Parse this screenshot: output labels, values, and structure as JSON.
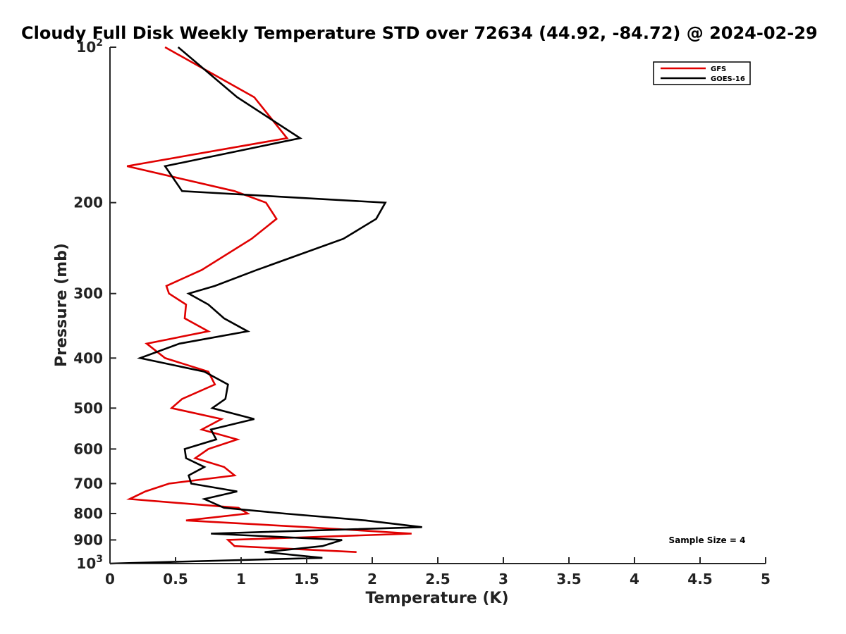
{
  "chart_data": {
    "type": "line",
    "title": "Cloudy Full Disk Weekly Temperature STD over 72634 (44.92, -84.72) @ 2024-02-29",
    "xlabel": "Temperature (K)",
    "ylabel": "Pressure (mb)",
    "xlim": [
      0,
      5
    ],
    "ylim": [
      100,
      1000
    ],
    "y_scale": "log",
    "y_reversed": true,
    "x_ticks": [
      0,
      0.5,
      1,
      1.5,
      2,
      2.5,
      3,
      3.5,
      4,
      4.5,
      5
    ],
    "x_tick_labels": [
      "0",
      "0.5",
      "1",
      "1.5",
      "2",
      "2.5",
      "3",
      "3.5",
      "4",
      "4.5",
      "5"
    ],
    "y_ticks": [
      {
        "value": 100,
        "label": "10",
        "sup": "2"
      },
      {
        "value": 200,
        "label": "200"
      },
      {
        "value": 300,
        "label": "300"
      },
      {
        "value": 400,
        "label": "400"
      },
      {
        "value": 500,
        "label": "500"
      },
      {
        "value": 600,
        "label": "600"
      },
      {
        "value": 700,
        "label": "700"
      },
      {
        "value": 800,
        "label": "800"
      },
      {
        "value": 900,
        "label": "900"
      },
      {
        "value": 1000,
        "label": "10",
        "sup": "3"
      }
    ],
    "legend_position": "top-right",
    "grid": false,
    "series": [
      {
        "name": "GFS",
        "color": "#e00000",
        "points": [
          [
            0.42,
            100
          ],
          [
            1.1,
            125
          ],
          [
            1.35,
            150
          ],
          [
            0.13,
            170
          ],
          [
            0.95,
            190
          ],
          [
            1.19,
            200
          ],
          [
            1.27,
            215
          ],
          [
            1.08,
            235
          ],
          [
            0.7,
            270
          ],
          [
            0.43,
            290
          ],
          [
            0.45,
            300
          ],
          [
            0.58,
            315
          ],
          [
            0.57,
            335
          ],
          [
            0.75,
            355
          ],
          [
            0.28,
            375
          ],
          [
            0.42,
            400
          ],
          [
            0.75,
            425
          ],
          [
            0.8,
            450
          ],
          [
            0.55,
            480
          ],
          [
            0.47,
            500
          ],
          [
            0.85,
            525
          ],
          [
            0.7,
            550
          ],
          [
            0.97,
            575
          ],
          [
            0.75,
            600
          ],
          [
            0.65,
            625
          ],
          [
            0.87,
            650
          ],
          [
            0.95,
            675
          ],
          [
            0.45,
            700
          ],
          [
            0.27,
            725
          ],
          [
            0.15,
            750
          ],
          [
            0.98,
            780
          ],
          [
            1.05,
            800
          ],
          [
            0.58,
            825
          ],
          [
            1.5,
            850
          ],
          [
            2.3,
            875
          ],
          [
            0.9,
            900
          ],
          [
            0.95,
            925
          ],
          [
            1.88,
            950
          ]
        ]
      },
      {
        "name": "GOES-16",
        "color": "#000000",
        "points": [
          [
            0.52,
            100
          ],
          [
            0.97,
            125
          ],
          [
            1.45,
            150
          ],
          [
            0.42,
            170
          ],
          [
            0.55,
            190
          ],
          [
            2.1,
            200
          ],
          [
            2.03,
            215
          ],
          [
            1.78,
            235
          ],
          [
            1.12,
            270
          ],
          [
            0.8,
            290
          ],
          [
            0.6,
            300
          ],
          [
            0.75,
            315
          ],
          [
            0.87,
            335
          ],
          [
            1.05,
            355
          ],
          [
            0.53,
            375
          ],
          [
            0.23,
            400
          ],
          [
            0.72,
            425
          ],
          [
            0.9,
            450
          ],
          [
            0.88,
            480
          ],
          [
            0.78,
            500
          ],
          [
            1.1,
            525
          ],
          [
            0.77,
            550
          ],
          [
            0.81,
            575
          ],
          [
            0.57,
            600
          ],
          [
            0.58,
            625
          ],
          [
            0.72,
            650
          ],
          [
            0.6,
            675
          ],
          [
            0.62,
            700
          ],
          [
            0.97,
            725
          ],
          [
            0.72,
            750
          ],
          [
            0.87,
            780
          ],
          [
            1.33,
            800
          ],
          [
            1.95,
            825
          ],
          [
            2.38,
            850
          ],
          [
            0.77,
            875
          ],
          [
            1.77,
            900
          ],
          [
            1.62,
            925
          ],
          [
            1.18,
            950
          ],
          [
            1.62,
            975
          ],
          [
            0.0,
            1000
          ]
        ]
      }
    ],
    "annotations": [
      "Sample Size = 4"
    ]
  }
}
